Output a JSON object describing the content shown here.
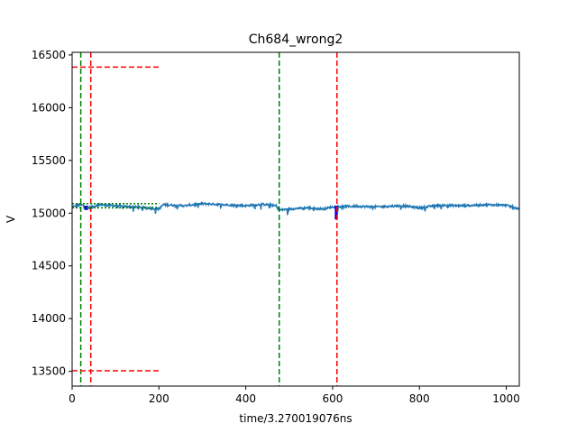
{
  "chart_data": {
    "type": "line",
    "title": "Ch684_wrong2",
    "xlabel": "time/3.270019076ns",
    "ylabel": "V",
    "xlim": [
      0,
      1030
    ],
    "ylim": [
      13360,
      16525
    ],
    "xticks": [
      0,
      200,
      400,
      600,
      800,
      1000
    ],
    "yticks": [
      13500,
      14000,
      14500,
      15000,
      15500,
      16000,
      16500
    ],
    "grid": false,
    "series": [
      {
        "color": "#1f77b4",
        "baseline": 15070,
        "x_range": [
          0,
          1030
        ],
        "y_range_approx": [
          14990,
          15100
        ],
        "sample_points": [
          [
            0,
            15060
          ],
          [
            20,
            15080
          ],
          [
            40,
            15050
          ],
          [
            60,
            15080
          ],
          [
            100,
            15070
          ],
          [
            140,
            15060
          ],
          [
            200,
            15040
          ],
          [
            210,
            15080
          ],
          [
            260,
            15070
          ],
          [
            300,
            15090
          ],
          [
            350,
            15080
          ],
          [
            400,
            15070
          ],
          [
            440,
            15085
          ],
          [
            470,
            15070
          ],
          [
            480,
            15030
          ],
          [
            500,
            15040
          ],
          [
            540,
            15050
          ],
          [
            580,
            15040
          ],
          [
            600,
            15060
          ],
          [
            650,
            15065
          ],
          [
            700,
            15060
          ],
          [
            760,
            15070
          ],
          [
            800,
            15050
          ],
          [
            840,
            15075
          ],
          [
            900,
            15070
          ],
          [
            950,
            15080
          ],
          [
            1000,
            15075
          ],
          [
            1030,
            15040
          ]
        ]
      },
      {
        "color": "#0000ff",
        "segments": [
          {
            "x": [
              28,
              36
            ],
            "y": [
              15030,
              15070
            ]
          },
          {
            "x": [
              605,
              612
            ],
            "y": [
              14940,
              15070
            ]
          }
        ]
      }
    ],
    "markers": {
      "green_vlines": [
        20,
        477
      ],
      "red_vlines": [
        43,
        610
      ],
      "red_hlines": {
        "y": [
          16385,
          13505
        ],
        "x_range": [
          0,
          200
        ]
      },
      "green_dotted_hlines": {
        "y": [
          15090,
          15050
        ],
        "x_range": [
          0,
          200
        ]
      },
      "green_color": "#008000",
      "red_color": "#ff0000"
    }
  }
}
